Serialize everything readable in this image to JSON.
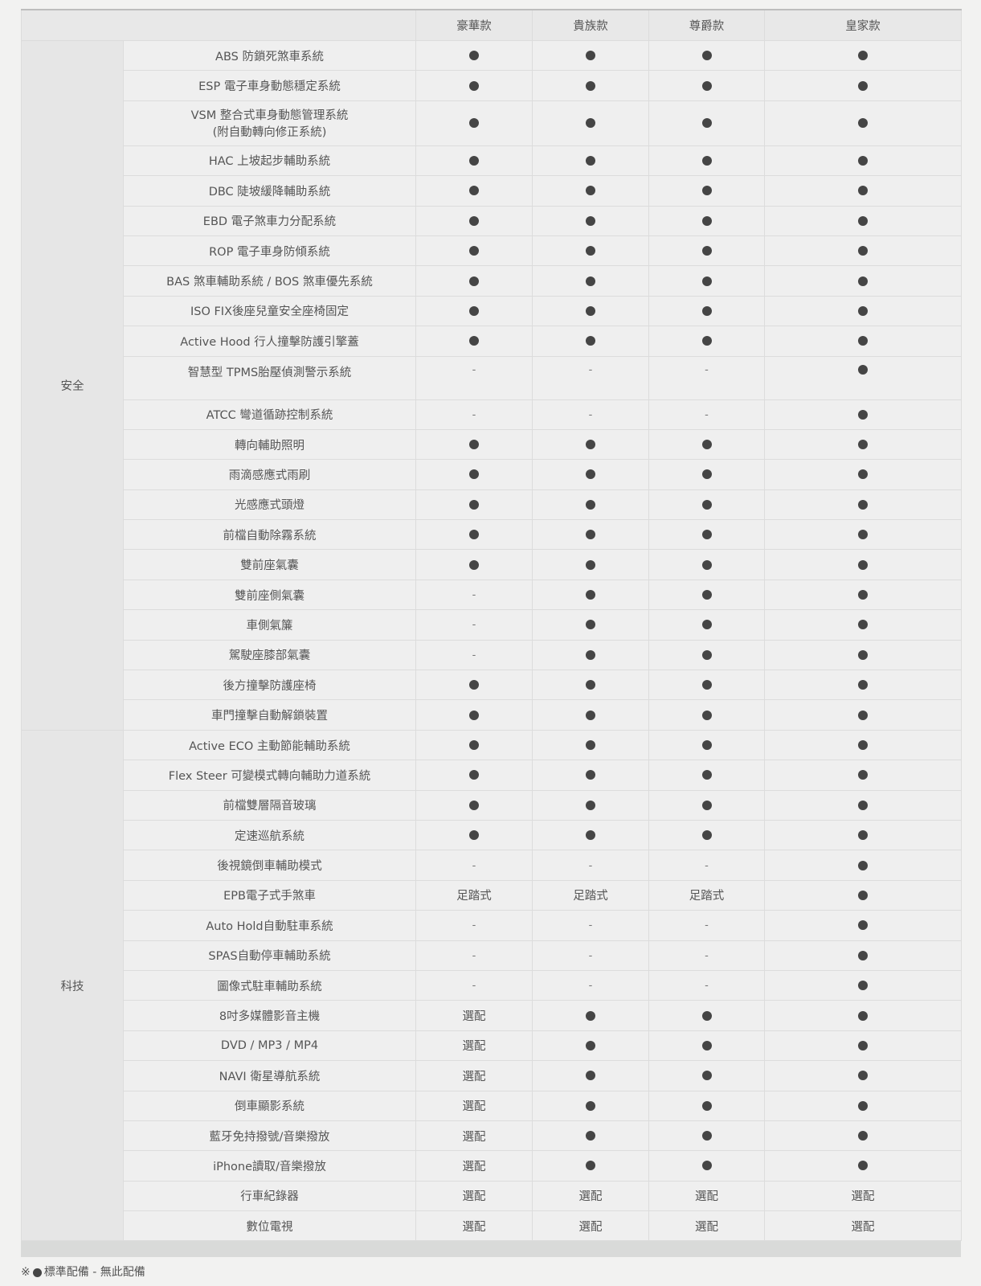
{
  "header": {
    "models": [
      "豪華款",
      "貴族款",
      "尊爵款",
      "皇家款"
    ]
  },
  "groups": [
    {
      "category": "安全",
      "rows": [
        {
          "feature": "ABS 防鎖死煞車系統",
          "values": [
            "●",
            "●",
            "●",
            "●"
          ]
        },
        {
          "feature": "ESP 電子車身動態穩定系統",
          "values": [
            "●",
            "●",
            "●",
            "●"
          ]
        },
        {
          "feature": "VSM 整合式車身動態管理系統\n(附自動轉向修正系統)",
          "values": [
            "●",
            "●",
            "●",
            "●"
          ]
        },
        {
          "feature": "HAC 上坡起步輔助系統",
          "values": [
            "●",
            "●",
            "●",
            "●"
          ]
        },
        {
          "feature": "DBC 陡坡緩降輔助系統",
          "values": [
            "●",
            "●",
            "●",
            "●"
          ]
        },
        {
          "feature": "EBD 電子煞車力分配系統",
          "values": [
            "●",
            "●",
            "●",
            "●"
          ]
        },
        {
          "feature": "ROP 電子車身防傾系統",
          "values": [
            "●",
            "●",
            "●",
            "●"
          ]
        },
        {
          "feature": "BAS 煞車輔助系統 / BOS 煞車優先系統",
          "values": [
            "●",
            "●",
            "●",
            "●"
          ]
        },
        {
          "feature": "ISO FIX後座兒童安全座椅固定",
          "values": [
            "●",
            "●",
            "●",
            "●"
          ]
        },
        {
          "feature": "Active Hood 行人撞擊防護引擎蓋",
          "values": [
            "●",
            "●",
            "●",
            "●"
          ]
        },
        {
          "feature": "智慧型 TPMS胎壓偵測警示系統",
          "values": [
            "-",
            "-",
            "-",
            "●"
          ]
        },
        {
          "feature": "ATCC 彎道循跡控制系統",
          "values": [
            "-",
            "-",
            "-",
            "●"
          ]
        },
        {
          "feature": "轉向輔助照明",
          "values": [
            "●",
            "●",
            "●",
            "●"
          ]
        },
        {
          "feature": "雨滴感應式雨刷",
          "values": [
            "●",
            "●",
            "●",
            "●"
          ]
        },
        {
          "feature": "光感應式頭燈",
          "values": [
            "●",
            "●",
            "●",
            "●"
          ]
        },
        {
          "feature": "前檔自動除霧系統",
          "values": [
            "●",
            "●",
            "●",
            "●"
          ]
        },
        {
          "feature": "雙前座氣囊",
          "values": [
            "●",
            "●",
            "●",
            "●"
          ]
        },
        {
          "feature": "雙前座側氣囊",
          "values": [
            "-",
            "●",
            "●",
            "●"
          ]
        },
        {
          "feature": "車側氣簾",
          "values": [
            "-",
            "●",
            "●",
            "●"
          ]
        },
        {
          "feature": "駕駛座膝部氣囊",
          "values": [
            "-",
            "●",
            "●",
            "●"
          ]
        },
        {
          "feature": "後方撞擊防護座椅",
          "values": [
            "●",
            "●",
            "●",
            "●"
          ]
        },
        {
          "feature": "車門撞擊自動解鎖裝置",
          "values": [
            "●",
            "●",
            "●",
            "●"
          ]
        }
      ]
    },
    {
      "category": "科技",
      "rows": [
        {
          "feature": "Active ECO 主動節能輔助系統",
          "values": [
            "●",
            "●",
            "●",
            "●"
          ]
        },
        {
          "feature": "Flex Steer 可變模式轉向輔助力道系統",
          "values": [
            "●",
            "●",
            "●",
            "●"
          ]
        },
        {
          "feature": "前檔雙層隔音玻璃",
          "values": [
            "●",
            "●",
            "●",
            "●"
          ]
        },
        {
          "feature": "定速巡航系統",
          "values": [
            "●",
            "●",
            "●",
            "●"
          ]
        },
        {
          "feature": "後視鏡倒車輔助模式",
          "values": [
            "-",
            "-",
            "-",
            "●"
          ]
        },
        {
          "feature": "EPB電子式手煞車",
          "values": [
            "足踏式",
            "足踏式",
            "足踏式",
            "●"
          ]
        },
        {
          "feature": "Auto Hold自動駐車系統",
          "values": [
            "-",
            "-",
            "-",
            "●"
          ]
        },
        {
          "feature": "SPAS自動停車輔助系統",
          "values": [
            "-",
            "-",
            "-",
            "●"
          ]
        },
        {
          "feature": "圖像式駐車輔助系統",
          "values": [
            "-",
            "-",
            "-",
            "●"
          ]
        },
        {
          "feature": "8吋多媒體影音主機",
          "values": [
            "選配",
            "●",
            "●",
            "●"
          ]
        },
        {
          "feature": "DVD / MP3 / MP4",
          "values": [
            "選配",
            "●",
            "●",
            "●"
          ]
        },
        {
          "feature": "NAVI 衛星導航系統",
          "values": [
            "選配",
            "●",
            "●",
            "●"
          ]
        },
        {
          "feature": "倒車顯影系統",
          "values": [
            "選配",
            "●",
            "●",
            "●"
          ]
        },
        {
          "feature": "藍牙免持撥號/音樂撥放",
          "values": [
            "選配",
            "●",
            "●",
            "●"
          ]
        },
        {
          "feature": "iPhone讀取/音樂撥放",
          "values": [
            "選配",
            "●",
            "●",
            "●"
          ]
        },
        {
          "feature": "行車紀錄器",
          "values": [
            "選配",
            "選配",
            "選配",
            "選配"
          ]
        },
        {
          "feature": "數位電視",
          "values": [
            "選配",
            "選配",
            "選配",
            "選配"
          ]
        }
      ]
    }
  ],
  "legend": {
    "mark": "※",
    "standard_icon": "filled-circle-icon",
    "standard_label": "標準配備",
    "none_label": "- 無此配備"
  },
  "colors": {
    "dot": "#454545",
    "background": "#f2f2f1",
    "category_cell": "#e6e6e6"
  }
}
